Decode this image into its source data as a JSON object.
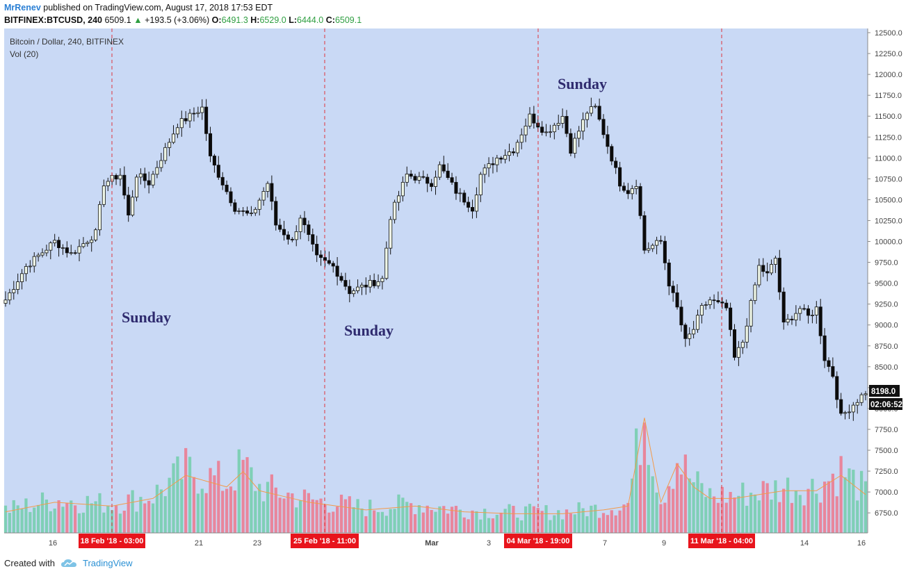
{
  "header": {
    "author": "MrRenev",
    "published_text": "published on TradingView.com, August 17, 2018 17:53 EDT",
    "symbol": "BITFINEX:BTCUSD, 240",
    "last": "6509.1",
    "change": "+193.5 (+3.06%)",
    "o_label": "O:",
    "o_val": "6491.3",
    "h_label": "H:",
    "h_val": "6529.0",
    "l_label": "L:",
    "l_val": "6444.0",
    "c_label": "C:",
    "c_val": "6509.1"
  },
  "chart_title": "Bitcoin / Dollar, 240, BITFINEX",
  "vol_label": "Vol (20)",
  "annotations": [
    "Sunday",
    "Sunday",
    "Sunday"
  ],
  "price_badge": "8198.0",
  "timer_badge": "02:06:52",
  "footer": {
    "created_with": "Created with",
    "brand": "TradingView"
  },
  "colors": {
    "background": "#c9d9f5",
    "up_candle": "#eef6e6",
    "down_candle": "#0b0b0b",
    "vol_up": "#7fcfb6",
    "vol_down": "#e8869c",
    "vol_ma": "#f39a4a",
    "marker_line": "#e0343c",
    "date_badge": "#e8141c"
  },
  "chart_data": {
    "type": "candlestick",
    "title": "Bitcoin / Dollar, 240, BITFINEX",
    "ylim": [
      6500,
      12500
    ],
    "y_ticks": [
      "12500.0",
      "12250.0",
      "12000.0",
      "11750.0",
      "11500.0",
      "11250.0",
      "11000.0",
      "10750.0",
      "10500.0",
      "10250.0",
      "10000.0",
      "9750.0",
      "9500.0",
      "9250.0",
      "9000.0",
      "8750.0",
      "8500.0",
      "8250.0",
      "8000.0",
      "7750.0",
      "7500.0",
      "7250.0",
      "7000.0",
      "6750.0"
    ],
    "x_ticks": [
      "16",
      "21",
      "23",
      "Mar",
      "3",
      "7",
      "9",
      "14",
      "16"
    ],
    "date_markers": [
      "18 Feb '18 - 03:00",
      "25 Feb '18 - 11:00",
      "04 Mar '18 - 19:00",
      "11 Mar '18 - 04:00"
    ],
    "close_path": [
      [
        0,
        9300
      ],
      [
        5,
        9700
      ],
      [
        12,
        10000
      ],
      [
        16,
        9850
      ],
      [
        22,
        10100
      ],
      [
        24,
        10700
      ],
      [
        28,
        10800
      ],
      [
        30,
        10300
      ],
      [
        32,
        10800
      ],
      [
        35,
        10700
      ],
      [
        38,
        11000
      ],
      [
        42,
        11400
      ],
      [
        48,
        11600
      ],
      [
        50,
        11000
      ],
      [
        56,
        10400
      ],
      [
        60,
        10300
      ],
      [
        64,
        10700
      ],
      [
        66,
        10200
      ],
      [
        68,
        10100
      ],
      [
        70,
        10000
      ],
      [
        72,
        10300
      ],
      [
        76,
        9800
      ],
      [
        80,
        9700
      ],
      [
        84,
        9400
      ],
      [
        92,
        9550
      ],
      [
        94,
        10300
      ],
      [
        98,
        10800
      ],
      [
        104,
        10700
      ],
      [
        106,
        10900
      ],
      [
        110,
        10600
      ],
      [
        112,
        10500
      ],
      [
        114,
        10400
      ],
      [
        116,
        10800
      ],
      [
        120,
        11000
      ],
      [
        124,
        11100
      ],
      [
        128,
        11500
      ],
      [
        132,
        11300
      ],
      [
        136,
        11500
      ],
      [
        138,
        11100
      ],
      [
        142,
        11550
      ],
      [
        144,
        11600
      ],
      [
        146,
        11300
      ],
      [
        148,
        11000
      ],
      [
        150,
        10700
      ],
      [
        152,
        10600
      ],
      [
        154,
        10700
      ],
      [
        156,
        9900
      ],
      [
        160,
        10000
      ],
      [
        162,
        9500
      ],
      [
        164,
        9200
      ],
      [
        166,
        8800
      ],
      [
        168,
        8950
      ],
      [
        170,
        9200
      ],
      [
        172,
        9300
      ],
      [
        176,
        9200
      ],
      [
        178,
        8600
      ],
      [
        180,
        8800
      ],
      [
        184,
        9700
      ],
      [
        186,
        9600
      ],
      [
        188,
        9800
      ],
      [
        190,
        9000
      ],
      [
        194,
        9200
      ],
      [
        196,
        9100
      ],
      [
        198,
        9200
      ],
      [
        200,
        8600
      ],
      [
        202,
        8400
      ],
      [
        204,
        7900
      ],
      [
        206,
        8000
      ],
      [
        210,
        8200
      ]
    ],
    "volume": [
      [
        0,
        0.55
      ],
      [
        12,
        0.8
      ],
      [
        26,
        0.7
      ],
      [
        36,
        0.9
      ],
      [
        44,
        1.5
      ],
      [
        54,
        1.2
      ],
      [
        58,
        1.6
      ],
      [
        62,
        1.1
      ],
      [
        74,
        0.8
      ],
      [
        88,
        0.6
      ],
      [
        100,
        0.7
      ],
      [
        112,
        0.55
      ],
      [
        124,
        0.5
      ],
      [
        136,
        0.5
      ],
      [
        146,
        0.6
      ],
      [
        152,
        0.7
      ],
      [
        156,
        3.0
      ],
      [
        160,
        0.8
      ],
      [
        164,
        1.8
      ],
      [
        168,
        1.2
      ],
      [
        172,
        0.9
      ],
      [
        178,
        0.9
      ],
      [
        184,
        1.0
      ],
      [
        190,
        1.1
      ],
      [
        198,
        1.1
      ],
      [
        204,
        1.5
      ],
      [
        210,
        1.0
      ]
    ]
  }
}
